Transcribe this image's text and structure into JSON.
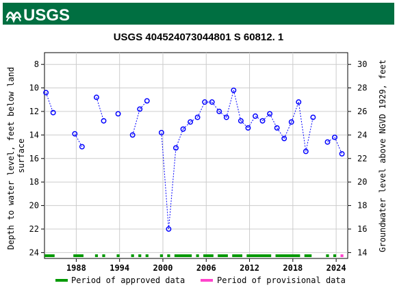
{
  "header": {
    "logo_text": "USGS"
  },
  "chart_data": {
    "type": "scatter",
    "title": "USGS 404524073044801 S 60812. 1",
    "ylabel_left": "Depth to water level, feet below land surface",
    "ylabel_left_lines": [
      "Depth to water level, feet below land",
      "surface"
    ],
    "ylabel_right": "Groundwater level above NGVD 1929, feet",
    "x_ticks": [
      1988,
      1994,
      2000,
      2006,
      2012,
      2018,
      2024
    ],
    "x_range": [
      1983.6,
      2025.6
    ],
    "y_left_ticks": [
      8,
      10,
      12,
      14,
      16,
      18,
      20,
      22,
      24
    ],
    "y_left_range": [
      7.0,
      24.5
    ],
    "y_right_ticks": [
      30,
      28,
      26,
      24,
      22,
      20,
      18,
      16,
      14
    ],
    "datum_offset": 38.0,
    "grid": true,
    "series": [
      {
        "type": "approved-measurements",
        "points": [
          {
            "x": 1983.8,
            "y": 10.4
          },
          {
            "x": 1984.8,
            "y": 12.1
          },
          {
            "x": 1987.8,
            "y": 13.9
          },
          {
            "x": 1988.8,
            "y": 15.0
          },
          {
            "x": 1990.8,
            "y": 10.8
          },
          {
            "x": 1991.8,
            "y": 12.8
          },
          {
            "x": 1993.8,
            "y": 12.2
          },
          {
            "x": 1995.8,
            "y": 14.0
          },
          {
            "x": 1996.8,
            "y": 11.8
          },
          {
            "x": 1997.8,
            "y": 11.1
          },
          {
            "x": 1999.8,
            "y": 13.8
          },
          {
            "x": 2000.8,
            "y": 22.0
          },
          {
            "x": 2001.8,
            "y": 15.1
          },
          {
            "x": 2002.8,
            "y": 13.5
          },
          {
            "x": 2003.8,
            "y": 12.9
          },
          {
            "x": 2004.8,
            "y": 12.5
          },
          {
            "x": 2005.8,
            "y": 11.2
          },
          {
            "x": 2006.8,
            "y": 11.2
          },
          {
            "x": 2007.8,
            "y": 12.0
          },
          {
            "x": 2008.8,
            "y": 12.5
          },
          {
            "x": 2009.8,
            "y": 10.2
          },
          {
            "x": 2010.8,
            "y": 12.8
          },
          {
            "x": 2011.8,
            "y": 13.4
          },
          {
            "x": 2012.8,
            "y": 12.4
          },
          {
            "x": 2013.8,
            "y": 12.8
          },
          {
            "x": 2014.8,
            "y": 12.2
          },
          {
            "x": 2015.8,
            "y": 13.4
          },
          {
            "x": 2016.8,
            "y": 14.3
          },
          {
            "x": 2017.8,
            "y": 12.9
          },
          {
            "x": 2018.8,
            "y": 11.2
          },
          {
            "x": 2019.8,
            "y": 15.4
          },
          {
            "x": 2020.8,
            "y": 12.5
          },
          {
            "x": 2022.8,
            "y": 14.6
          },
          {
            "x": 2023.8,
            "y": 14.2
          },
          {
            "x": 2024.8,
            "y": 15.6
          }
        ],
        "connected_groups": [
          [
            0,
            1
          ],
          [
            2,
            3
          ],
          [
            4,
            5
          ],
          [
            7,
            8,
            9
          ],
          [
            10,
            11,
            12,
            13,
            14,
            15,
            16,
            17,
            18,
            19,
            20,
            21,
            22,
            23,
            24,
            25,
            26,
            27,
            28,
            29,
            30,
            31
          ],
          [
            32,
            33,
            34
          ]
        ],
        "marker_color": "#0000ff",
        "line_color": "#0000ff"
      }
    ],
    "approval_bar_segments": [
      {
        "start": 1983.6,
        "end": 1985.0,
        "status": "approved"
      },
      {
        "start": 1987.6,
        "end": 1989.0,
        "status": "approved"
      },
      {
        "start": 1990.6,
        "end": 1991.0,
        "status": "approved"
      },
      {
        "start": 1991.6,
        "end": 1992.0,
        "status": "approved"
      },
      {
        "start": 1993.6,
        "end": 1994.0,
        "status": "approved"
      },
      {
        "start": 1995.6,
        "end": 1996.0,
        "status": "approved"
      },
      {
        "start": 1996.6,
        "end": 1997.0,
        "status": "approved"
      },
      {
        "start": 1997.6,
        "end": 1998.0,
        "status": "approved"
      },
      {
        "start": 1999.6,
        "end": 2000.0,
        "status": "approved"
      },
      {
        "start": 2000.6,
        "end": 2001.0,
        "status": "approved"
      },
      {
        "start": 2001.6,
        "end": 2004.0,
        "status": "approved"
      },
      {
        "start": 2004.6,
        "end": 2005.0,
        "status": "approved"
      },
      {
        "start": 2005.6,
        "end": 2007.0,
        "status": "approved"
      },
      {
        "start": 2007.6,
        "end": 2009.0,
        "status": "approved"
      },
      {
        "start": 2009.6,
        "end": 2011.0,
        "status": "approved"
      },
      {
        "start": 2011.6,
        "end": 2015.0,
        "status": "approved"
      },
      {
        "start": 2015.6,
        "end": 2019.0,
        "status": "approved"
      },
      {
        "start": 2019.6,
        "end": 2020.6,
        "status": "approved"
      },
      {
        "start": 2022.6,
        "end": 2023.0,
        "status": "approved"
      },
      {
        "start": 2023.6,
        "end": 2024.0,
        "status": "approved"
      },
      {
        "start": 2024.6,
        "end": 2025.0,
        "status": "provisional"
      }
    ],
    "legend": {
      "placement": "bottom",
      "items": [
        {
          "label": "Period of approved data",
          "color": "#009900"
        },
        {
          "label": "Period of provisional data",
          "color": "#ff44cc"
        }
      ]
    }
  }
}
